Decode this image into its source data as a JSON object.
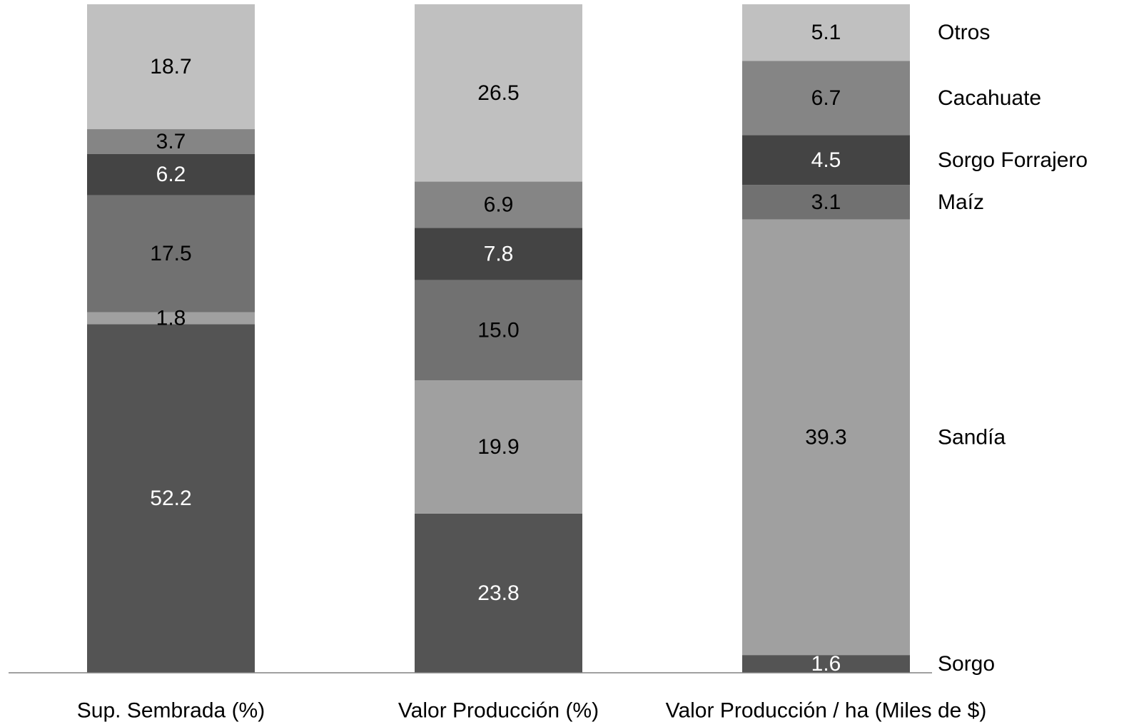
{
  "chart_data": {
    "type": "bar",
    "stacked": true,
    "normalized": true,
    "categories": [
      "Sup. Sembrada (%)",
      "Valor Producción (%)",
      "Valor Producción / ha (Miles de $)"
    ],
    "series": [
      {
        "name": "Sorgo",
        "values": [
          52.2,
          23.8,
          1.6
        ],
        "color": "#545454",
        "label_color": "#ffffff"
      },
      {
        "name": "Sandía",
        "values": [
          1.8,
          19.9,
          39.3
        ],
        "color": "#a0a0a0",
        "label_color": "#000000"
      },
      {
        "name": "Maíz",
        "values": [
          17.5,
          15.0,
          3.1
        ],
        "color": "#717171",
        "label_color": "#000000"
      },
      {
        "name": "Sorgo Forrajero",
        "values": [
          6.2,
          7.8,
          4.5
        ],
        "color": "#444444",
        "label_color": "#ffffff"
      },
      {
        "name": "Cacahuate",
        "values": [
          3.7,
          6.9,
          6.7
        ],
        "color": "#858585",
        "label_color": "#000000"
      },
      {
        "name": "Otros",
        "values": [
          18.7,
          26.5,
          5.1
        ],
        "color": "#c0c0c0",
        "label_color": "#000000"
      }
    ],
    "legend_position": "right",
    "grid": false,
    "title": "",
    "xlabel": "",
    "ylabel": ""
  }
}
